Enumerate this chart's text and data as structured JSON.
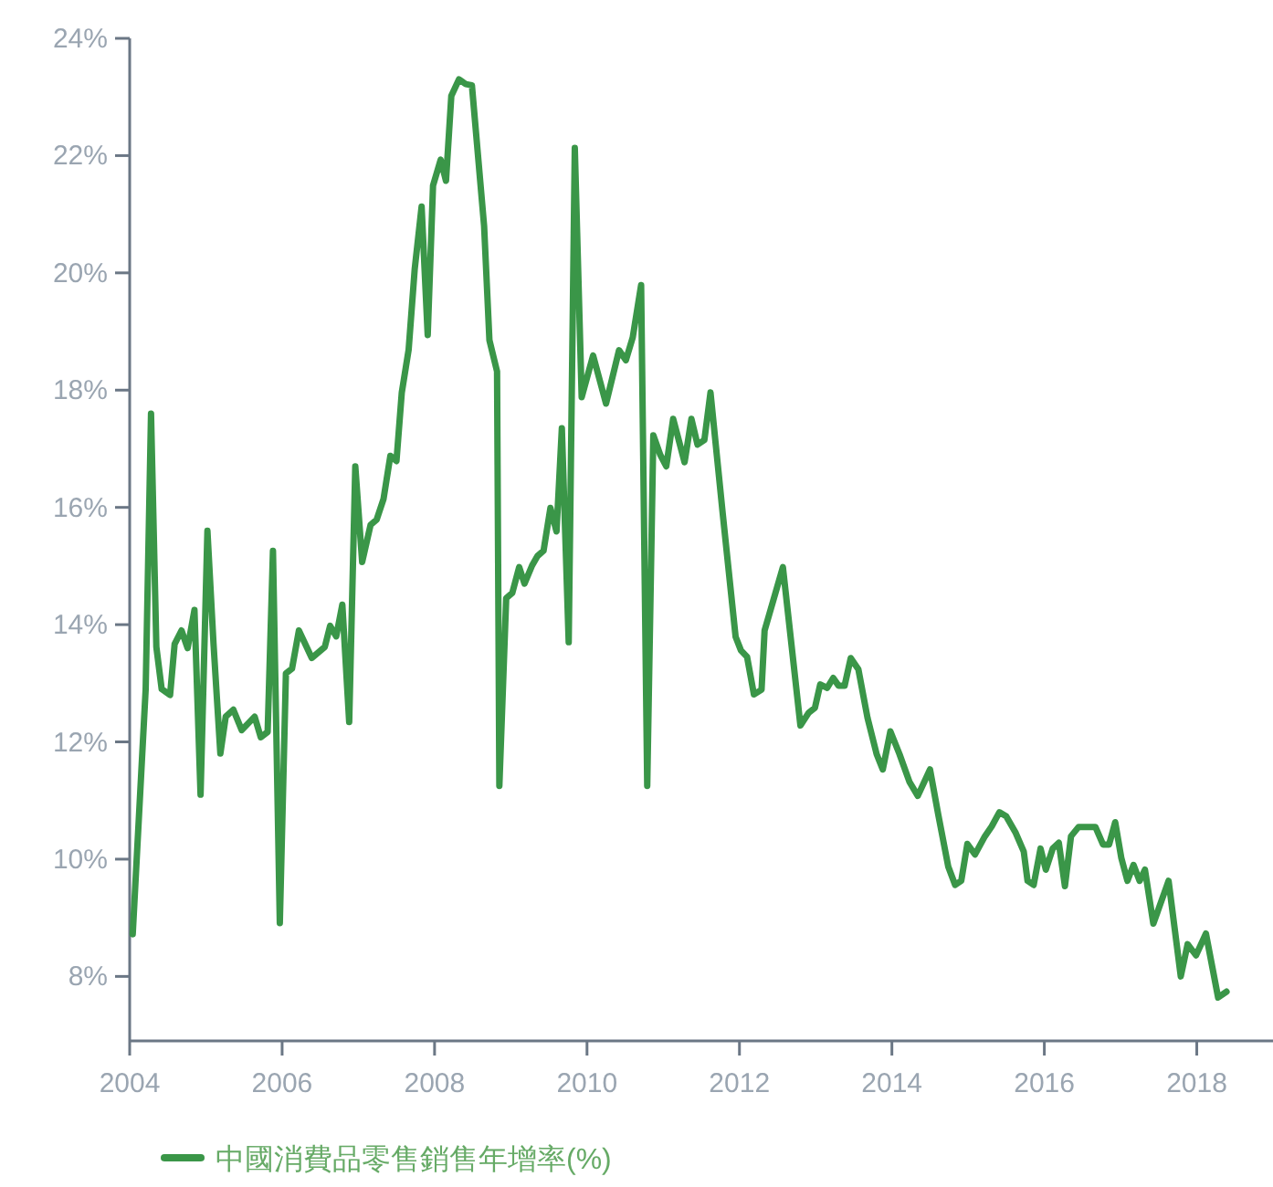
{
  "chart_data": {
    "type": "line",
    "xlim": [
      2004,
      2019
    ],
    "ylim": [
      6.9,
      24
    ],
    "xticks": [
      2004,
      2006,
      2008,
      2010,
      2012,
      2014,
      2016,
      2018
    ],
    "yticks": [
      {
        "value": 8,
        "label": "8%"
      },
      {
        "value": 10,
        "label": "10%"
      },
      {
        "value": 12,
        "label": "12%"
      },
      {
        "value": 14,
        "label": "14%"
      },
      {
        "value": 16,
        "label": "16%"
      },
      {
        "value": 18,
        "label": "18%"
      },
      {
        "value": 20,
        "label": "20%"
      },
      {
        "value": 22,
        "label": "22%"
      },
      {
        "value": 24,
        "label": "24%"
      }
    ],
    "grid": false,
    "legend": "bottom left",
    "marker": "none",
    "line_style": "solid",
    "series": [
      {
        "name": "中國消費品零售銷售年增率(%)",
        "color": "#3a9648",
        "x": [
          2004.04,
          2004.21,
          2004.28,
          2004.35,
          2004.42,
          2004.53,
          2004.59,
          2004.68,
          2004.76,
          2004.85,
          2004.93,
          2005.02,
          2005.1,
          2005.19,
          2005.26,
          2005.36,
          2005.47,
          2005.64,
          2005.72,
          2005.81,
          2005.88,
          2005.97,
          2006.05,
          2006.13,
          2006.22,
          2006.39,
          2006.56,
          2006.63,
          2006.71,
          2006.79,
          2006.88,
          2006.96,
          2007.05,
          2007.16,
          2007.24,
          2007.33,
          2007.42,
          2007.5,
          2007.57,
          2007.66,
          2007.74,
          2007.83,
          2007.91,
          2007.98,
          2008.08,
          2008.15,
          2008.22,
          2008.32,
          2008.41,
          2008.49,
          2008.65,
          2008.72,
          2008.82,
          2008.85,
          2008.94,
          2009.02,
          2009.11,
          2009.18,
          2009.28,
          2009.35,
          2009.43,
          2009.52,
          2009.6,
          2009.67,
          2009.76,
          2009.84,
          2009.93,
          2010.08,
          2010.25,
          2010.42,
          2010.51,
          2010.6,
          2010.71,
          2010.79,
          2010.87,
          2010.96,
          2011.04,
          2011.13,
          2011.28,
          2011.37,
          2011.45,
          2011.54,
          2011.62,
          2011.78,
          2011.95,
          2012.02,
          2012.1,
          2012.19,
          2012.29,
          2012.33,
          2012.57,
          2012.8,
          2012.91,
          2012.99,
          2013.06,
          2013.15,
          2013.23,
          2013.3,
          2013.38,
          2013.46,
          2013.56,
          2013.68,
          2013.8,
          2013.88,
          2013.98,
          2014.1,
          2014.23,
          2014.34,
          2014.5,
          2014.61,
          2014.74,
          2014.83,
          2014.91,
          2014.99,
          2015.09,
          2015.22,
          2015.31,
          2015.41,
          2015.5,
          2015.62,
          2015.73,
          2015.78,
          2015.86,
          2015.95,
          2016.02,
          2016.11,
          2016.19,
          2016.27,
          2016.35,
          2016.45,
          2016.67,
          2016.77,
          2016.85,
          2016.93,
          2017.01,
          2017.09,
          2017.17,
          2017.25,
          2017.32,
          2017.43,
          2017.63,
          2017.79,
          2017.88,
          2017.99,
          2018.12,
          2018.28,
          2018.39
        ],
        "values": [
          8.72,
          12.9,
          17.6,
          13.62,
          12.9,
          12.8,
          13.67,
          13.9,
          13.6,
          14.25,
          11.1,
          15.6,
          13.67,
          11.8,
          12.43,
          12.55,
          12.2,
          12.43,
          12.08,
          12.17,
          15.26,
          8.91,
          13.17,
          13.25,
          13.9,
          13.43,
          13.62,
          13.98,
          13.8,
          14.34,
          12.34,
          16.7,
          15.07,
          15.7,
          15.79,
          16.14,
          16.88,
          16.79,
          17.96,
          18.69,
          20.07,
          21.13,
          18.94,
          21.49,
          21.93,
          21.57,
          23.02,
          23.3,
          23.22,
          23.2,
          20.8,
          18.85,
          18.32,
          11.25,
          14.45,
          14.54,
          14.98,
          14.7,
          15.01,
          15.17,
          15.26,
          15.99,
          15.59,
          17.35,
          13.7,
          22.13,
          17.88,
          18.59,
          17.77,
          18.68,
          18.51,
          18.9,
          19.79,
          11.25,
          17.23,
          16.9,
          16.7,
          17.51,
          16.77,
          17.51,
          17.07,
          17.15,
          17.96,
          15.9,
          13.79,
          13.56,
          13.45,
          12.81,
          12.89,
          13.9,
          14.98,
          12.28,
          12.5,
          12.58,
          12.98,
          12.92,
          13.09,
          12.96,
          12.96,
          13.43,
          13.24,
          12.41,
          11.79,
          11.53,
          12.18,
          11.79,
          11.32,
          11.08,
          11.53,
          10.75,
          9.87,
          9.56,
          9.63,
          10.26,
          10.08,
          10.39,
          10.56,
          10.8,
          10.73,
          10.46,
          10.13,
          9.63,
          9.56,
          10.18,
          9.82,
          10.18,
          10.28,
          9.54,
          10.39,
          10.55,
          10.55,
          10.25,
          10.25,
          10.63,
          10.02,
          9.63,
          9.9,
          9.63,
          9.82,
          8.9,
          9.63,
          8.0,
          8.55,
          8.36,
          8.73,
          7.64,
          7.74
        ]
      }
    ]
  }
}
